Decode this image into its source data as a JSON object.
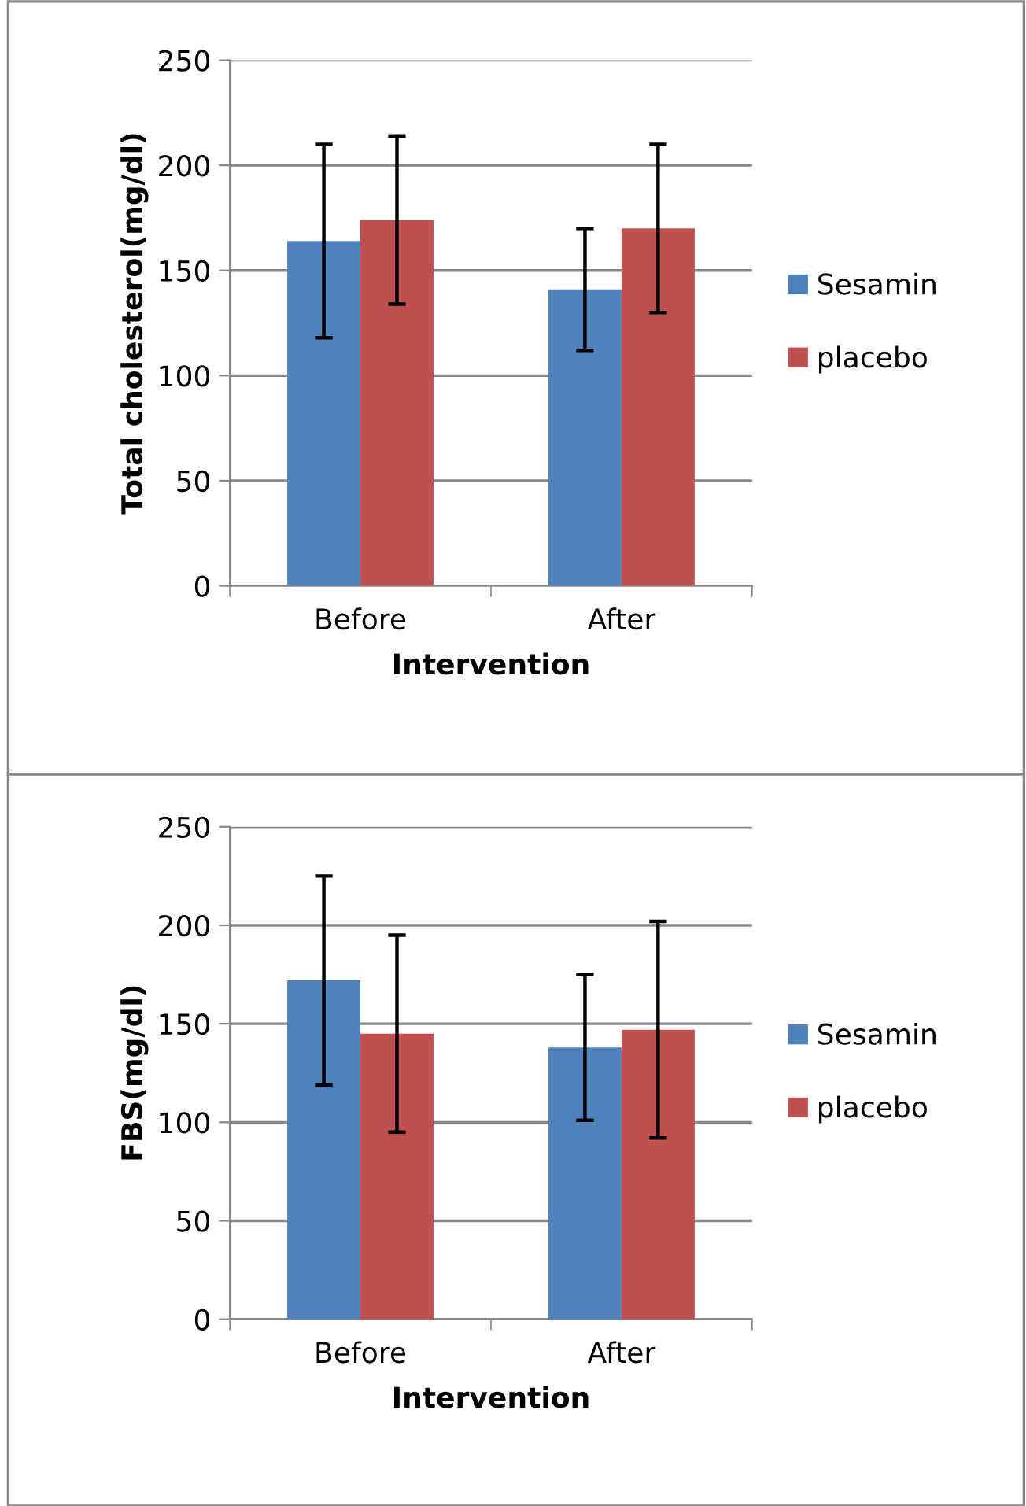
{
  "chart_data": [
    {
      "type": "bar",
      "xlabel": "Intervention",
      "ylabel": "Total cholesterol(mg/dl)",
      "categories": [
        "Before",
        "After"
      ],
      "ylim": [
        0,
        250
      ],
      "yticks": [
        0,
        50,
        100,
        150,
        200,
        250
      ],
      "grid": "y",
      "legend": "right",
      "series": [
        {
          "name": "Sesamin",
          "color": "#4f81bd",
          "values": [
            164,
            141
          ],
          "errors": [
            46,
            29
          ]
        },
        {
          "name": "placebo",
          "color": "#c0504d",
          "values": [
            174,
            170
          ],
          "errors": [
            40,
            40
          ]
        }
      ]
    },
    {
      "type": "bar",
      "xlabel": "Intervention",
      "ylabel": "FBS(mg/dl)",
      "categories": [
        "Before",
        "After"
      ],
      "ylim": [
        0,
        250
      ],
      "yticks": [
        0,
        50,
        100,
        150,
        200,
        250
      ],
      "grid": "y",
      "legend": "right",
      "series": [
        {
          "name": "Sesamin",
          "color": "#4f81bd",
          "values": [
            172,
            138
          ],
          "errors": [
            53,
            37
          ]
        },
        {
          "name": "placebo",
          "color": "#c0504d",
          "values": [
            145,
            147
          ],
          "errors": [
            50,
            55
          ]
        }
      ]
    }
  ]
}
